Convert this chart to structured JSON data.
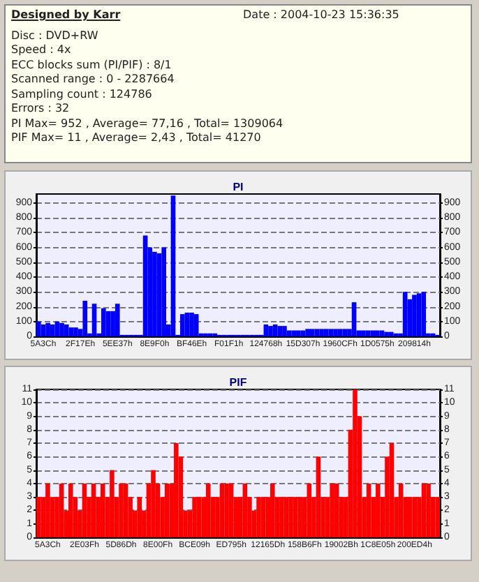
{
  "chart_data": [
    {
      "type": "other",
      "title": "Designed by Karr",
      "annotations": [
        "Date : 2004-10-23 15:36:35",
        "Disc : DVD+RW",
        "Speed : 4x",
        "ECC blocks sum (PI/PIF) : 8/1",
        "Scanned range : 0 - 2287664",
        "Sampling count : 124786",
        "Errors : 32",
        "PI Max= 952 , Average= 77,16 , Total= 1309064",
        "PIF Max= 11 , Average= 2,43 , Total= 41270"
      ]
    },
    {
      "type": "bar",
      "title": "PI",
      "color": "#0000ff",
      "grid": "y",
      "categories": [
        null,
        "5A3Ch",
        null,
        null,
        null,
        null,
        null,
        null,
        null,
        "2F17Eh",
        null,
        null,
        null,
        null,
        null,
        null,
        null,
        "5EE37h",
        null,
        null,
        null,
        null,
        null,
        null,
        null,
        "8E9F0h",
        null,
        null,
        null,
        null,
        null,
        null,
        null,
        "BF46Eh",
        null,
        null,
        null,
        null,
        null,
        null,
        null,
        "F01F1h",
        null,
        null,
        null,
        null,
        null,
        null,
        null,
        "124768h",
        null,
        null,
        null,
        null,
        null,
        null,
        null,
        "15D307h",
        null,
        null,
        null,
        null,
        null,
        null,
        null,
        "1960CFh",
        null,
        null,
        null,
        null,
        null,
        null,
        null,
        "1D0575h",
        null,
        null,
        null,
        null,
        null,
        null,
        null,
        "209814h",
        null,
        null,
        null,
        null,
        null
      ],
      "values": [
        100,
        80,
        90,
        80,
        100,
        90,
        80,
        60,
        60,
        50,
        240,
        20,
        220,
        20,
        190,
        170,
        170,
        220,
        10,
        10,
        10,
        10,
        10,
        680,
        600,
        570,
        560,
        600,
        80,
        950,
        10,
        150,
        160,
        160,
        150,
        20,
        20,
        20,
        20,
        10,
        10,
        10,
        10,
        10,
        10,
        10,
        10,
        10,
        10,
        80,
        70,
        80,
        70,
        70,
        40,
        40,
        40,
        40,
        50,
        50,
        50,
        50,
        50,
        50,
        50,
        50,
        50,
        50,
        230,
        40,
        40,
        40,
        40,
        40,
        40,
        30,
        30,
        20,
        20,
        300,
        250,
        280,
        290,
        300,
        20,
        20,
        10
      ],
      "ylim": [
        0,
        960
      ],
      "yticks": [
        0,
        100,
        200,
        300,
        400,
        500,
        600,
        700,
        800,
        900
      ],
      "y2lim": [
        0,
        960
      ],
      "y2ticks": [
        0,
        100,
        200,
        300,
        400,
        500,
        600,
        700,
        800,
        900
      ]
    },
    {
      "type": "bar",
      "title": "PIF",
      "color": "#ff0000",
      "grid": "y",
      "categories": [
        null,
        null,
        "5A3Ch",
        null,
        null,
        null,
        null,
        null,
        null,
        null,
        "2E03Fh",
        null,
        null,
        null,
        null,
        null,
        null,
        null,
        "5D86Dh",
        null,
        null,
        null,
        null,
        null,
        null,
        null,
        "8E00Fh",
        null,
        null,
        null,
        null,
        null,
        null,
        null,
        "BCE09h",
        null,
        null,
        null,
        null,
        null,
        null,
        null,
        "ED795h",
        null,
        null,
        null,
        null,
        null,
        null,
        null,
        "12165Dh",
        null,
        null,
        null,
        null,
        null,
        null,
        null,
        "158B6Fh",
        null,
        null,
        null,
        null,
        null,
        null,
        null,
        "19002Bh",
        null,
        null,
        null,
        null,
        null,
        null,
        null,
        "1C8E05h",
        null,
        null,
        null,
        null,
        null,
        null,
        null,
        "200ED4h",
        null,
        null,
        null,
        null,
        null
      ],
      "values": [
        3,
        3,
        4,
        3,
        3,
        4,
        2,
        4,
        3,
        2,
        4,
        3,
        4,
        3,
        4,
        3,
        5,
        3,
        4,
        4,
        3,
        2,
        3,
        2,
        4,
        5,
        4,
        3,
        4,
        4,
        7,
        6,
        2,
        2,
        3,
        3,
        3,
        4,
        3,
        3,
        4,
        4,
        4,
        3,
        3,
        4,
        3,
        2,
        3,
        3,
        3,
        4,
        3,
        3,
        3,
        3,
        3,
        3,
        3,
        4,
        3,
        6,
        3,
        3,
        4,
        4,
        3,
        3,
        8,
        11,
        9,
        3,
        4,
        3,
        4,
        3,
        6,
        7,
        3,
        4,
        3,
        3,
        3,
        3,
        4,
        4,
        3,
        3
      ],
      "ylim": [
        0,
        11
      ],
      "yticks": [
        0,
        1,
        2,
        3,
        4,
        5,
        6,
        7,
        8,
        9,
        10,
        11
      ],
      "y2lim": [
        0,
        11
      ],
      "y2ticks": [
        0,
        1,
        2,
        3,
        4,
        5,
        6,
        7,
        8,
        9,
        10,
        11
      ]
    }
  ]
}
